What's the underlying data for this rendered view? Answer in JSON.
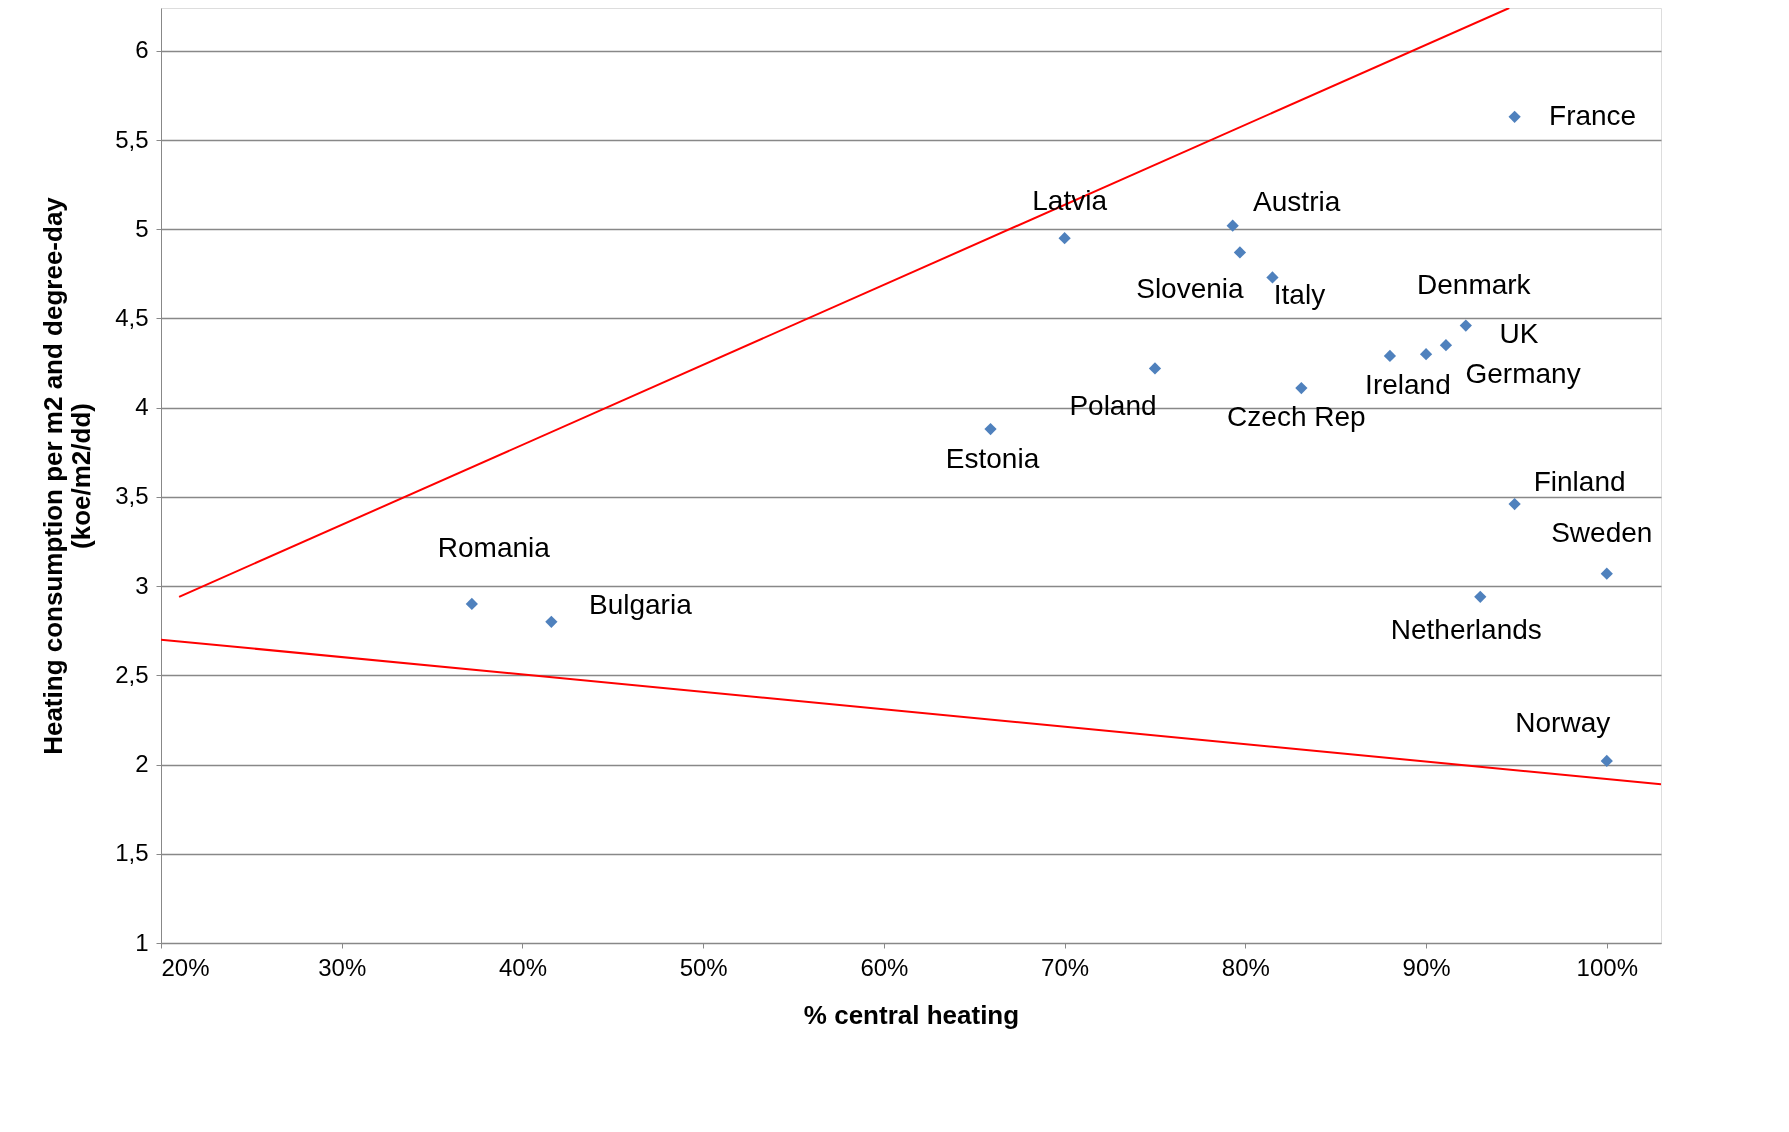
{
  "chart_data": {
    "type": "scatter",
    "xlabel": "% central heating",
    "ylabel": "Heating consumption per m2 and degree-day\n(koe/m2/dd)",
    "xlim": [
      20,
      103
    ],
    "ylim": [
      1,
      6.24
    ],
    "xticks": [
      {
        "value": 20,
        "label": "20%"
      },
      {
        "value": 30,
        "label": "30%"
      },
      {
        "value": 40,
        "label": "40%"
      },
      {
        "value": 50,
        "label": "50%"
      },
      {
        "value": 60,
        "label": "60%"
      },
      {
        "value": 70,
        "label": "70%"
      },
      {
        "value": 80,
        "label": "80%"
      },
      {
        "value": 90,
        "label": "90%"
      },
      {
        "value": 100,
        "label": "100%"
      }
    ],
    "yticks": [
      1,
      {
        "value": 1.5,
        "label": "1,5"
      },
      2,
      {
        "value": 2.5,
        "label": "2,5"
      },
      3,
      {
        "value": 3.5,
        "label": "3,5"
      },
      4,
      {
        "value": 4.5,
        "label": "4,5"
      },
      5,
      {
        "value": 5.5,
        "label": "5,5"
      },
      6
    ],
    "grid": "y",
    "series": [
      {
        "marker": "diamond",
        "color": "#4f81bd",
        "x": [
          37.2,
          41.6,
          65.9,
          70.0,
          75.0,
          79.3,
          79.7,
          81.5,
          83.1,
          88.0,
          90.0,
          91.1,
          92.2,
          94.9,
          94.9,
          100,
          93.0,
          100
        ],
        "values": [
          2.9,
          2.8,
          3.88,
          4.95,
          4.22,
          5.02,
          4.87,
          4.73,
          4.11,
          4.29,
          4.3,
          4.35,
          4.46,
          5.63,
          3.46,
          3.07,
          2.94,
          2.02
        ]
      },
      {
        "type": "line",
        "marker": "none",
        "line_style": "solid",
        "color": "#ff0000",
        "x": [
          21,
          94.6
        ],
        "values": [
          2.94,
          6.24
        ]
      },
      {
        "type": "line",
        "marker": "none",
        "line_style": "solid",
        "color": "#ff0000",
        "x": [
          20,
          103
        ],
        "values": [
          2.7,
          1.89
        ]
      }
    ],
    "annotations": [
      {
        "text": "Romania",
        "x": 37.2,
        "y": 2.9
      },
      {
        "text": "Bulgaria",
        "x": 41.6,
        "y": 2.8
      },
      {
        "text": "Estonia",
        "x": 65.9,
        "y": 3.88
      },
      {
        "text": "Latvia",
        "x": 70.0,
        "y": 4.95
      },
      {
        "text": "Poland",
        "x": 75.0,
        "y": 4.22
      },
      {
        "text": "Austria",
        "x": 79.3,
        "y": 5.02
      },
      {
        "text": "Slovenia",
        "x": 79.7,
        "y": 4.87
      },
      {
        "text": "Italy",
        "x": 81.5,
        "y": 4.73
      },
      {
        "text": "Czech Rep",
        "x": 83.1,
        "y": 4.11
      },
      {
        "text": "Ireland",
        "x": 88.0,
        "y": 4.29
      },
      {
        "text": "Germany",
        "x": 90.0,
        "y": 4.3
      },
      {
        "text": "UK",
        "x": 91.1,
        "y": 4.35
      },
      {
        "text": "Denmark",
        "x": 92.2,
        "y": 4.46
      },
      {
        "text": "France",
        "x": 94.9,
        "y": 5.63
      },
      {
        "text": "Finland",
        "x": 94.9,
        "y": 3.46
      },
      {
        "text": "Sweden",
        "x": 100,
        "y": 3.07
      },
      {
        "text": "Netherlands",
        "x": 93.0,
        "y": 2.94
      },
      {
        "text": "Norway",
        "x": 100,
        "y": 2.02
      }
    ]
  }
}
